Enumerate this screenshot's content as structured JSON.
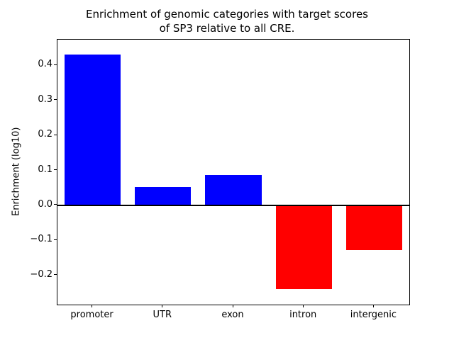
{
  "figure": {
    "title_lines": [
      "Enrichment of genomic categories with target scores",
      "of SP3 relative to all CRE."
    ]
  },
  "chart_data": {
    "type": "bar",
    "title": "Enrichment of genomic categories with target scores of SP3 relative to all CRE.",
    "categories": [
      "promoter",
      "UTR",
      "exon",
      "intron",
      "intergenic"
    ],
    "values": [
      0.43,
      0.052,
      0.086,
      -0.238,
      -0.128
    ],
    "xlabel": "",
    "ylabel": "Enrichment (log10)",
    "ylim": [
      -0.283,
      0.473
    ],
    "yticks": [
      -0.2,
      -0.1,
      0.0,
      0.1,
      0.2,
      0.3,
      0.4
    ],
    "ytick_decimals": 1,
    "bar_width_fraction": 0.8,
    "positive_color": "#0000ff",
    "negative_color": "#ff0000",
    "zero_line": true,
    "grid": false,
    "legend": false
  }
}
